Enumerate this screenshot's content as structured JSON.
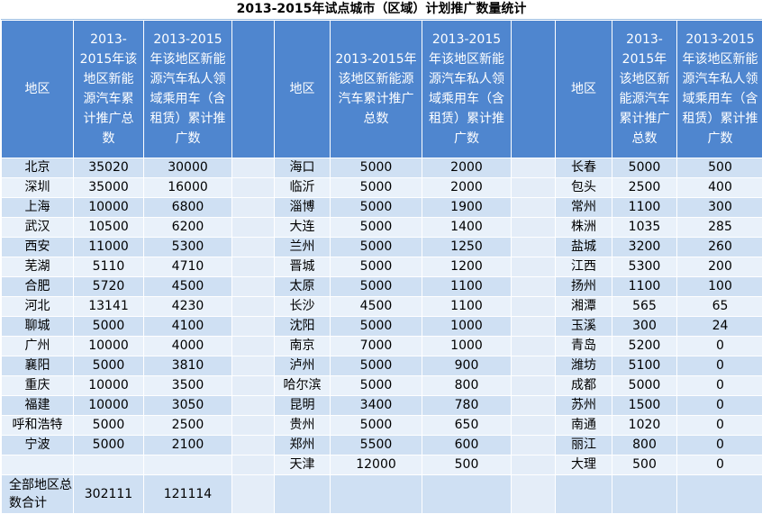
{
  "title": "2013-2015年试点城市（区域）计划推广数量统计",
  "headers": {
    "region": "地区",
    "total_short": "2013-2015年该地区新能源汽车累计推广总数",
    "total_long": "2013-2015年该地区新能源汽车累计推广总数",
    "private": "2013-2015年该地区新能源汽车私人领域乘用车（含租赁）累计推广数"
  },
  "group1": [
    {
      "region": "北京",
      "total": "35020",
      "private": "30000"
    },
    {
      "region": "深圳",
      "total": "35000",
      "private": "16000"
    },
    {
      "region": "上海",
      "total": "10000",
      "private": "6800"
    },
    {
      "region": "武汉",
      "total": "10500",
      "private": "6200"
    },
    {
      "region": "西安",
      "total": "11000",
      "private": "5300"
    },
    {
      "region": "芜湖",
      "total": "5110",
      "private": "4710"
    },
    {
      "region": "合肥",
      "total": "5720",
      "private": "4500"
    },
    {
      "region": "河北",
      "total": "13141",
      "private": "4230"
    },
    {
      "region": "聊城",
      "total": "5000",
      "private": "4100"
    },
    {
      "region": "广州",
      "total": "10000",
      "private": "4000"
    },
    {
      "region": "襄阳",
      "total": "5000",
      "private": "3810"
    },
    {
      "region": "重庆",
      "total": "10000",
      "private": "3500"
    },
    {
      "region": "福建",
      "total": "10000",
      "private": "3050"
    },
    {
      "region": "呼和浩特",
      "total": "5000",
      "private": "2500"
    },
    {
      "region": "宁波",
      "total": "5000",
      "private": "2100"
    },
    {
      "region": "",
      "total": "",
      "private": ""
    }
  ],
  "group2": [
    {
      "region": "海口",
      "total": "5000",
      "private": "2000"
    },
    {
      "region": "临沂",
      "total": "5000",
      "private": "2000"
    },
    {
      "region": "淄博",
      "total": "5000",
      "private": "1900"
    },
    {
      "region": "大连",
      "total": "5000",
      "private": "1400"
    },
    {
      "region": "兰州",
      "total": "5000",
      "private": "1250"
    },
    {
      "region": "晋城",
      "total": "5000",
      "private": "1200"
    },
    {
      "region": "太原",
      "total": "5000",
      "private": "1100"
    },
    {
      "region": "长沙",
      "total": "4500",
      "private": "1100"
    },
    {
      "region": "沈阳",
      "total": "5000",
      "private": "1000"
    },
    {
      "region": "南京",
      "total": "7000",
      "private": "1000"
    },
    {
      "region": "泸州",
      "total": "5000",
      "private": "900"
    },
    {
      "region": "哈尔滨",
      "total": "5000",
      "private": "800"
    },
    {
      "region": "昆明",
      "total": "3400",
      "private": "780"
    },
    {
      "region": "贵州",
      "total": "5000",
      "private": "650"
    },
    {
      "region": "郑州",
      "total": "5500",
      "private": "600"
    },
    {
      "region": "天津",
      "total": "12000",
      "private": "500"
    }
  ],
  "group3": [
    {
      "region": "长春",
      "total": "5000",
      "private": "500"
    },
    {
      "region": "包头",
      "total": "2500",
      "private": "400"
    },
    {
      "region": "常州",
      "total": "1100",
      "private": "300"
    },
    {
      "region": "株洲",
      "total": "1035",
      "private": "285"
    },
    {
      "region": "盐城",
      "total": "3200",
      "private": "260"
    },
    {
      "region": "江西",
      "total": "5300",
      "private": "200"
    },
    {
      "region": "扬州",
      "total": "1100",
      "private": "100"
    },
    {
      "region": "湘潭",
      "total": "565",
      "private": "65"
    },
    {
      "region": "玉溪",
      "total": "300",
      "private": "24"
    },
    {
      "region": "青岛",
      "total": "5200",
      "private": "0"
    },
    {
      "region": "潍坊",
      "total": "5100",
      "private": "0"
    },
    {
      "region": "成都",
      "total": "5000",
      "private": "0"
    },
    {
      "region": "苏州",
      "total": "1500",
      "private": "0"
    },
    {
      "region": "南通",
      "total": "1020",
      "private": "0"
    },
    {
      "region": "丽江",
      "total": "800",
      "private": "0"
    },
    {
      "region": "大理",
      "total": "500",
      "private": "0"
    }
  ],
  "totals": {
    "label": "全部地区总数合计",
    "total": "302111",
    "private": "121114"
  }
}
